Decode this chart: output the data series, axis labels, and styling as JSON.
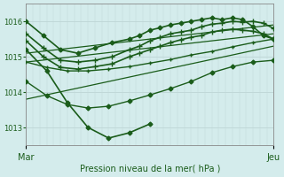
{
  "title": "Pression niveau de la mer( hPa )",
  "xlabel_left": "Mar",
  "xlabel_right": "Jeu",
  "ylim": [
    1012.5,
    1016.5
  ],
  "yticks": [
    1013,
    1014,
    1015,
    1016
  ],
  "bg_color": "#d4ecec",
  "grid_color": "#c0d8d8",
  "line_color": "#1a5c1a",
  "marker_color": "#1a5c1a",
  "lines": [
    {
      "x": [
        0,
        5,
        10,
        15,
        20,
        25,
        30,
        33,
        36,
        39,
        42,
        45,
        48,
        51,
        54,
        57,
        60,
        63,
        66,
        69,
        72
      ],
      "y": [
        1016.0,
        1015.6,
        1015.2,
        1015.1,
        1015.25,
        1015.4,
        1015.5,
        1015.6,
        1015.75,
        1015.82,
        1015.9,
        1015.95,
        1016.0,
        1016.05,
        1016.1,
        1016.05,
        1016.1,
        1016.05,
        1015.85,
        1015.6,
        1015.5
      ],
      "marker": "D",
      "lw": 1.2,
      "ms": 2.5
    },
    {
      "x": [
        0,
        5,
        10,
        15,
        20,
        25,
        30,
        33,
        36,
        39,
        42,
        45,
        48,
        51,
        54,
        57,
        60,
        63,
        66,
        69,
        72
      ],
      "y": [
        1015.65,
        1015.25,
        1014.9,
        1014.85,
        1014.9,
        1015.0,
        1015.2,
        1015.3,
        1015.45,
        1015.55,
        1015.65,
        1015.7,
        1015.75,
        1015.85,
        1015.92,
        1015.95,
        1016.0,
        1015.98,
        1016.0,
        1015.95,
        1015.8
      ],
      "marker": "+",
      "lw": 1.2,
      "ms": 4
    },
    {
      "x": [
        0,
        5,
        10,
        15,
        20,
        25,
        30,
        33,
        36,
        39,
        42,
        45,
        48,
        51,
        54,
        57,
        60,
        63,
        66,
        69,
        72
      ],
      "y": [
        1015.45,
        1015.0,
        1014.7,
        1014.65,
        1014.72,
        1014.8,
        1015.0,
        1015.1,
        1015.2,
        1015.3,
        1015.4,
        1015.48,
        1015.55,
        1015.6,
        1015.7,
        1015.75,
        1015.78,
        1015.75,
        1015.72,
        1015.65,
        1015.5
      ],
      "marker": "+",
      "lw": 1.2,
      "ms": 4
    },
    {
      "x": [
        0,
        72
      ],
      "y": [
        1015.1,
        1015.9
      ],
      "marker": null,
      "lw": 0.9,
      "ms": 0
    },
    {
      "x": [
        0,
        72
      ],
      "y": [
        1014.85,
        1015.65
      ],
      "marker": null,
      "lw": 0.9,
      "ms": 0
    },
    {
      "x": [
        0,
        72
      ],
      "y": [
        1013.8,
        1015.3
      ],
      "marker": null,
      "lw": 0.9,
      "ms": 0
    },
    {
      "x": [
        0,
        6,
        12,
        18,
        24,
        30,
        36,
        42,
        48,
        54,
        60,
        66,
        72
      ],
      "y": [
        1014.85,
        1014.7,
        1014.6,
        1014.6,
        1014.65,
        1014.72,
        1014.82,
        1014.92,
        1015.05,
        1015.15,
        1015.28,
        1015.4,
        1015.5
      ],
      "marker": "+",
      "lw": 1.0,
      "ms": 3
    },
    {
      "x": [
        0,
        6,
        12,
        18,
        24,
        30,
        36,
        42,
        48,
        54,
        60,
        66,
        72
      ],
      "y": [
        1014.3,
        1013.9,
        1013.65,
        1013.55,
        1013.6,
        1013.75,
        1013.92,
        1014.1,
        1014.3,
        1014.55,
        1014.72,
        1014.85,
        1014.9
      ],
      "marker": "D",
      "lw": 1.0,
      "ms": 2.5
    },
    {
      "x": [
        0,
        6,
        12,
        18,
        24,
        30,
        36
      ],
      "y": [
        1015.2,
        1014.6,
        1013.7,
        1013.0,
        1012.7,
        1012.85,
        1013.1
      ],
      "marker": "D",
      "lw": 1.2,
      "ms": 2.5
    }
  ]
}
